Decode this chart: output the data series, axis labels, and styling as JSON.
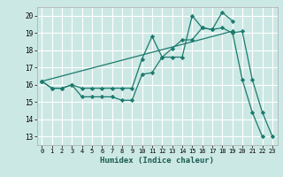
{
  "xlabel": "Humidex (Indice chaleur)",
  "bg_color": "#cce8e4",
  "grid_color": "#ffffff",
  "line_color": "#1a7a6e",
  "xlim": [
    -0.5,
    23.5
  ],
  "ylim": [
    12.5,
    20.5
  ],
  "xticks": [
    0,
    1,
    2,
    3,
    4,
    5,
    6,
    7,
    8,
    9,
    10,
    11,
    12,
    13,
    14,
    15,
    16,
    17,
    18,
    19,
    20,
    21,
    22,
    23
  ],
  "yticks": [
    13,
    14,
    15,
    16,
    17,
    18,
    19,
    20
  ],
  "series": [
    {
      "x": [
        0,
        1,
        2,
        3,
        4,
        5,
        6,
        7,
        8,
        9,
        10,
        11,
        12,
        13,
        14,
        15,
        16,
        17,
        18,
        19,
        20,
        21,
        22,
        23
      ],
      "y": [
        16.2,
        15.8,
        15.8,
        16.0,
        15.3,
        15.3,
        15.3,
        15.3,
        15.1,
        15.1,
        16.6,
        16.7,
        17.6,
        18.1,
        18.6,
        18.6,
        19.3,
        19.2,
        19.3,
        19.0,
        19.1,
        16.3,
        14.4,
        13.0
      ]
    },
    {
      "x": [
        0,
        1,
        2,
        3,
        4,
        5,
        6,
        7,
        8,
        9,
        10,
        11,
        12,
        13,
        14,
        15,
        16,
        17,
        18,
        19
      ],
      "y": [
        16.2,
        15.8,
        15.8,
        16.0,
        15.8,
        15.8,
        15.8,
        15.8,
        15.8,
        15.8,
        17.5,
        18.8,
        17.6,
        17.6,
        17.6,
        20.0,
        19.3,
        19.2,
        20.2,
        19.7
      ]
    },
    {
      "x": [
        0,
        19,
        20,
        21,
        22,
        23
      ],
      "y": [
        16.2,
        19.1,
        16.3,
        14.4,
        13.0,
        null
      ]
    }
  ]
}
